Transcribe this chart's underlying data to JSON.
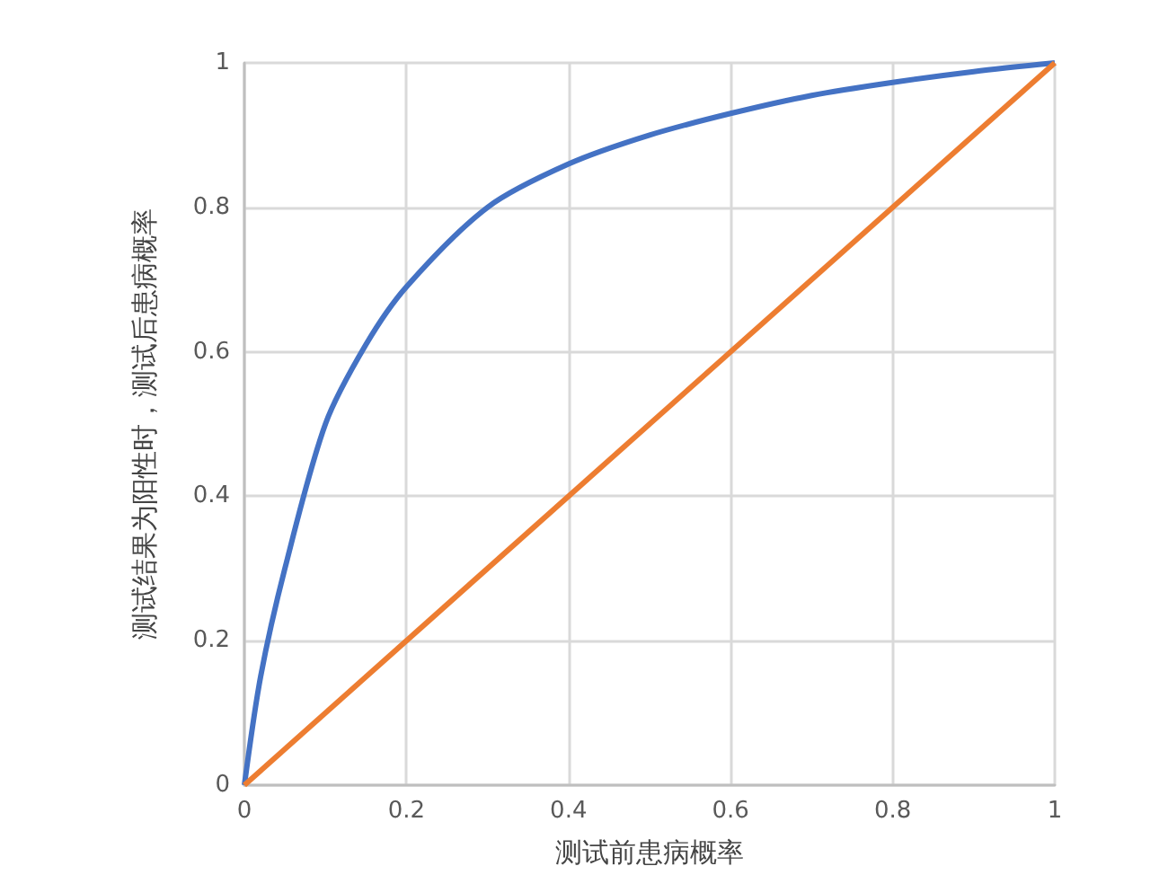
{
  "chart_data": {
    "type": "line",
    "xlabel": "测试前患病概率",
    "ylabel": "测试结果为阳性时，测试后患病概率",
    "xlim": [
      0,
      1
    ],
    "ylim": [
      0,
      1
    ],
    "xticks": [
      0,
      0.2,
      0.4,
      0.6,
      0.8,
      1
    ],
    "yticks": [
      0,
      0.2,
      0.4,
      0.6,
      0.8,
      1
    ],
    "grid": true,
    "marker": "none",
    "line_style": "solid",
    "series": [
      {
        "color": "#4472c4",
        "x": [
          0,
          0.02,
          0.05,
          0.1,
          0.15,
          0.2,
          0.3,
          0.4,
          0.5,
          0.6,
          0.7,
          0.8,
          0.9,
          1
        ],
        "values": [
          0,
          0.15,
          0.3,
          0.5,
          0.61,
          0.69,
          0.8,
          0.86,
          0.9,
          0.93,
          0.955,
          0.973,
          0.988,
          1
        ]
      },
      {
        "color": "#ed7d31",
        "x": [
          0,
          1
        ],
        "values": [
          0,
          1
        ]
      }
    ]
  }
}
